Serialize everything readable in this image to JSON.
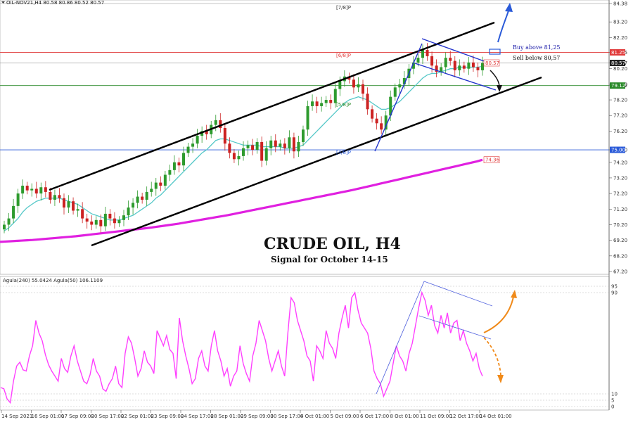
{
  "header": {
    "symbol_line": "OIL-NOV21,H4  80.58 80.86 80.52 80.57",
    "indicator_line": "Agula(240) 55.0424  Agula(50) 106.1109"
  },
  "annotations": {
    "title": "CRUDE OIL, H4",
    "subtitle": "Signal for October 14-15",
    "buy_text": "Buy above 81,25",
    "sell_text": "Sell below 80,57"
  },
  "murrey_labels": [
    "[7/8]P",
    "[6/8]P",
    "[5/8]P",
    "[4/8]P"
  ],
  "colors": {
    "bull": "#2e9b2e",
    "bear": "#cc2222",
    "ma_fast": "#55c8c8",
    "ma_slow": "#e020e0",
    "osc": "#ff40ff",
    "channel": "#000000",
    "trendline": "#2233cc",
    "level_red": "#e03a3a",
    "level_green": "#2a8a2a",
    "level_blue": "#2a5ad8",
    "arrow_up": "#2a5ad8",
    "arrow_down": "#111111",
    "arrow_orange": "#f08a1a"
  },
  "chart_data": {
    "type": "candlestick",
    "price_ticks": [
      "84.38",
      "83.20",
      "82.20",
      "81.25",
      "80.57",
      "80.20",
      "79.20",
      "79.12",
      "78.20",
      "77.20",
      "76.20",
      "75.00",
      "74.20",
      "73.20",
      "72.20",
      "71.20",
      "70.20",
      "69.20",
      "68.20",
      "67.20"
    ],
    "ylim": [
      66.8,
      84.7
    ],
    "price_levels": [
      {
        "name": "[6/8]P",
        "value": 81.25,
        "tag": "81.25",
        "color": "level_red"
      },
      {
        "name": "[5/8]P",
        "value": 79.12,
        "tag": "79.12",
        "color": "level_green"
      },
      {
        "name": "[4/8]P",
        "value": 75.0,
        "tag": "75.00",
        "color": "level_blue"
      },
      {
        "name": "current",
        "value": 80.57,
        "tag": "80.57",
        "color": "dark"
      }
    ],
    "ma_tag": "74.36",
    "x_labels": [
      "14 Sep 2021",
      "16 Sep 01:00",
      "17 Sep 09:00",
      "20 Sep 17:00",
      "22 Sep 01:00",
      "23 Sep 09:00",
      "24 Sep 17:00",
      "28 Sep 01:00",
      "29 Sep 09:00",
      "30 Sep 17:00",
      "4 Oct 01:00",
      "5 Oct 09:00",
      "6 Oct 17:00",
      "8 Oct 01:00",
      "11 Oct 09:00",
      "12 Oct 17:00",
      "14 Oct 01:00"
    ],
    "closes": [
      70.2,
      70.6,
      71.4,
      72.2,
      72.7,
      72.4,
      72.5,
      72.2,
      72.6,
      72.3,
      71.8,
      72.1,
      71.9,
      71.3,
      71.7,
      71.1,
      71.2,
      70.6,
      70.4,
      70.2,
      70.5,
      70.1,
      70.9,
      70.6,
      70.3,
      70.5,
      70.8,
      71.3,
      71.6,
      72.0,
      71.8,
      72.3,
      72.5,
      72.9,
      72.7,
      73.4,
      73.7,
      74.2,
      74.0,
      74.8,
      75.2,
      75.4,
      75.9,
      76.2,
      76.0,
      76.6,
      76.9,
      76.4,
      75.4,
      74.8,
      74.4,
      74.6,
      75.1,
      75.3,
      75.0,
      75.5,
      74.3,
      75.1,
      75.6,
      75.2,
      75.4,
      75.1,
      75.8,
      74.9,
      75.5,
      76.3,
      77.8,
      78.1,
      77.8,
      78.0,
      78.2,
      78.0,
      78.9,
      79.4,
      79.7,
      79.5,
      79.0,
      79.2,
      78.6,
      77.6,
      77.0,
      76.7,
      76.3,
      77.2,
      78.4,
      79.0,
      79.2,
      79.6,
      80.2,
      80.6,
      80.9,
      81.4,
      81.0,
      80.4,
      80.0,
      80.3,
      80.9,
      80.7,
      80.1,
      80.4,
      80.2,
      80.6,
      80.3,
      80.1,
      80.57
    ],
    "ma_fast": [
      69.8,
      70.0,
      70.3,
      70.6,
      71.0,
      71.3,
      71.5,
      71.7,
      71.8,
      71.9,
      71.9,
      71.9,
      71.9,
      71.8,
      71.7,
      71.6,
      71.5,
      71.3,
      71.1,
      70.9,
      70.8,
      70.7,
      70.6,
      70.5,
      70.5,
      70.5,
      70.6,
      70.7,
      70.8,
      71.0,
      71.2,
      71.4,
      71.6,
      71.9,
      72.1,
      72.4,
      72.7,
      73.0,
      73.3,
      73.6,
      73.9,
      74.2,
      74.5,
      74.8,
      75.0,
      75.3,
      75.6,
      75.7,
      75.7,
      75.6,
      75.5,
      75.4,
      75.3,
      75.3,
      75.3,
      75.3,
      75.2,
      75.2,
      75.2,
      75.2,
      75.2,
      75.1,
      75.1,
      75.1,
      75.2,
      75.3,
      75.6,
      75.9,
      76.2,
      76.5,
      76.8,
      77.1,
      77.4,
      77.7,
      78.0,
      78.2,
      78.3,
      78.4,
      78.3,
      78.2,
      78.0,
      77.8,
      77.6,
      77.6,
      77.7,
      77.9,
      78.1,
      78.4,
      78.7,
      79.0,
      79.3,
      79.6,
      79.8,
      79.9,
      79.9,
      80.0,
      80.1,
      80.2,
      80.2,
      80.3,
      80.3,
      80.3,
      80.3,
      80.3,
      80.35
    ],
    "ma_slow": [
      69.1,
      69.12,
      69.14,
      69.16,
      69.18,
      69.2,
      69.22,
      69.25,
      69.28,
      69.31,
      69.34,
      69.37,
      69.4,
      69.43,
      69.46,
      69.5,
      69.54,
      69.58,
      69.62,
      69.66,
      69.7,
      69.74,
      69.78,
      69.82,
      69.86,
      69.9,
      69.94,
      69.98,
      70.02,
      70.07,
      70.12,
      70.17,
      70.22,
      70.27,
      70.33,
      70.39,
      70.45,
      70.51,
      70.57,
      70.63,
      70.69,
      70.75,
      70.81,
      70.88,
      70.95,
      71.02,
      71.09,
      71.16,
      71.23,
      71.3,
      71.37,
      71.44,
      71.51,
      71.58,
      71.65,
      71.72,
      71.79,
      71.86,
      71.93,
      72.0,
      72.07,
      72.14,
      72.21,
      72.28,
      72.35,
      72.42,
      72.5,
      72.58,
      72.66,
      72.74,
      72.82,
      72.9,
      72.98,
      73.06,
      73.14,
      73.22,
      73.3,
      73.38,
      73.46,
      73.54,
      73.62,
      73.7,
      73.78,
      73.86,
      73.94,
      74.02,
      74.1,
      74.18,
      74.26,
      74.36
    ],
    "osc_ticks": [
      "95",
      "90",
      "10",
      "5",
      "0"
    ],
    "osc_values": [
      15,
      14,
      6,
      3,
      20,
      32,
      35,
      29,
      28,
      40,
      48,
      68,
      58,
      52,
      41,
      33,
      28,
      24,
      20,
      38,
      30,
      27,
      40,
      48,
      36,
      28,
      20,
      18,
      25,
      38,
      28,
      24,
      14,
      12,
      18,
      22,
      32,
      18,
      15,
      42,
      55,
      50,
      38,
      24,
      30,
      44,
      35,
      32,
      26,
      60,
      54,
      48,
      56,
      45,
      42,
      22,
      70,
      52,
      40,
      30,
      18,
      22,
      38,
      44,
      32,
      28,
      48,
      60,
      44,
      36,
      24,
      30,
      16,
      24,
      28,
      48,
      34,
      26,
      20,
      40,
      50,
      68,
      60,
      52,
      38,
      28,
      36,
      44,
      32,
      24,
      58,
      86,
      82,
      68,
      60,
      52,
      40,
      36,
      20,
      48,
      44,
      38,
      60,
      50,
      46,
      38,
      58,
      70,
      80,
      62,
      86,
      90,
      76,
      66,
      62,
      58,
      46,
      28,
      22,
      18,
      8,
      14,
      20,
      34,
      48,
      40,
      36,
      28,
      42,
      50,
      64,
      78,
      90,
      84,
      72,
      80,
      64,
      58,
      72,
      62,
      74,
      58,
      66,
      68,
      52,
      60,
      50,
      44,
      36,
      42,
      30,
      24
    ],
    "signal": {
      "buy_above": 81.25,
      "sell_below": 80.57
    }
  }
}
